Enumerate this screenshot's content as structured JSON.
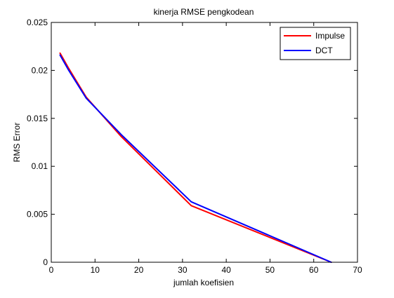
{
  "chart_data": {
    "type": "line",
    "title": "kinerja RMSE pengkodean",
    "xlabel": "jumlah koefisien",
    "ylabel": "RMS Error",
    "xlim": [
      0,
      70
    ],
    "ylim": [
      0,
      0.025
    ],
    "x_ticks": [
      0,
      10,
      20,
      30,
      40,
      50,
      60,
      70
    ],
    "x_tick_labels": [
      "0",
      "10",
      "20",
      "30",
      "40",
      "50",
      "60",
      "70"
    ],
    "y_ticks": [
      0,
      0.005,
      0.01,
      0.015,
      0.02,
      0.025
    ],
    "y_tick_labels": [
      "0",
      "0.005",
      "0.01",
      "0.015",
      "0.02",
      "0.025"
    ],
    "grid": false,
    "legend_position": "top-right",
    "series": [
      {
        "name": "Impulse",
        "color": "#ff0000",
        "x": [
          2,
          4,
          8,
          16,
          32,
          64
        ],
        "y": [
          0.0218,
          0.0202,
          0.0172,
          0.0131,
          0.0059,
          0.0
        ]
      },
      {
        "name": "DCT",
        "color": "#0000ff",
        "x": [
          2,
          4,
          8,
          16,
          32,
          64
        ],
        "y": [
          0.0216,
          0.02,
          0.0171,
          0.0133,
          0.0063,
          0.0
        ]
      }
    ]
  }
}
